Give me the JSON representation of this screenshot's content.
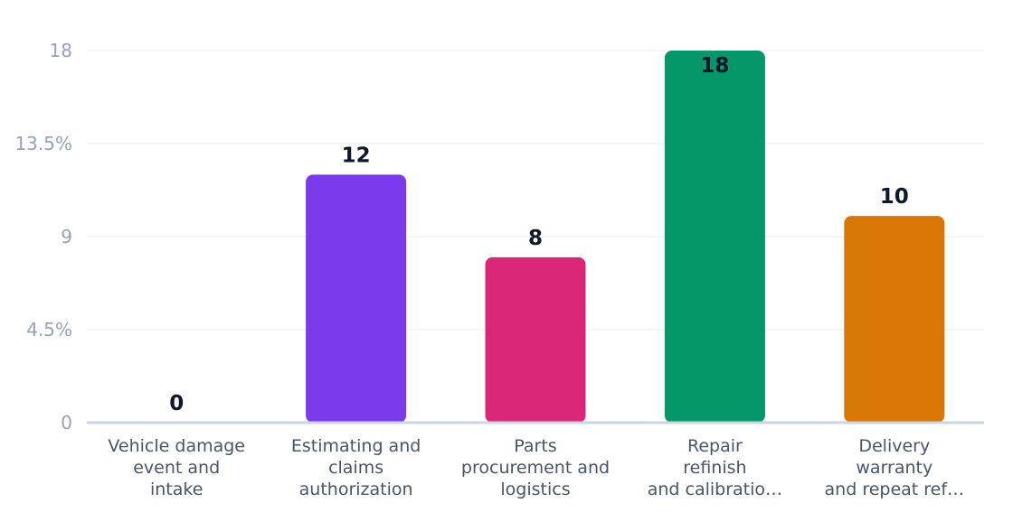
{
  "chart_data": {
    "type": "bar",
    "categories": [
      [
        "Vehicle damage",
        "event and",
        "intake"
      ],
      [
        "Estimating and",
        "claims",
        "authorization"
      ],
      [
        "Parts",
        "procurement and",
        "logistics"
      ],
      [
        "Repair",
        "refinish",
        "and calibratio…"
      ],
      [
        "Delivery",
        "warranty",
        "and repeat ref…"
      ]
    ],
    "values": [
      0,
      12,
      8,
      18,
      10
    ],
    "data_labels": [
      "0",
      "12",
      "8",
      "18",
      "10"
    ],
    "colors": [
      "#7c3aed",
      "#7c3aed",
      "#db2777",
      "#059669",
      "#d97706"
    ],
    "y_ticks": [
      {
        "value": 0,
        "label": "0"
      },
      {
        "value": 4.5,
        "label": "4.5%"
      },
      {
        "value": 9,
        "label": "9"
      },
      {
        "value": 13.5,
        "label": "13.5%"
      },
      {
        "value": 18,
        "label": "18"
      }
    ],
    "ylim": [
      0,
      18
    ],
    "grid": true,
    "title": "",
    "xlabel": "",
    "ylabel": ""
  }
}
